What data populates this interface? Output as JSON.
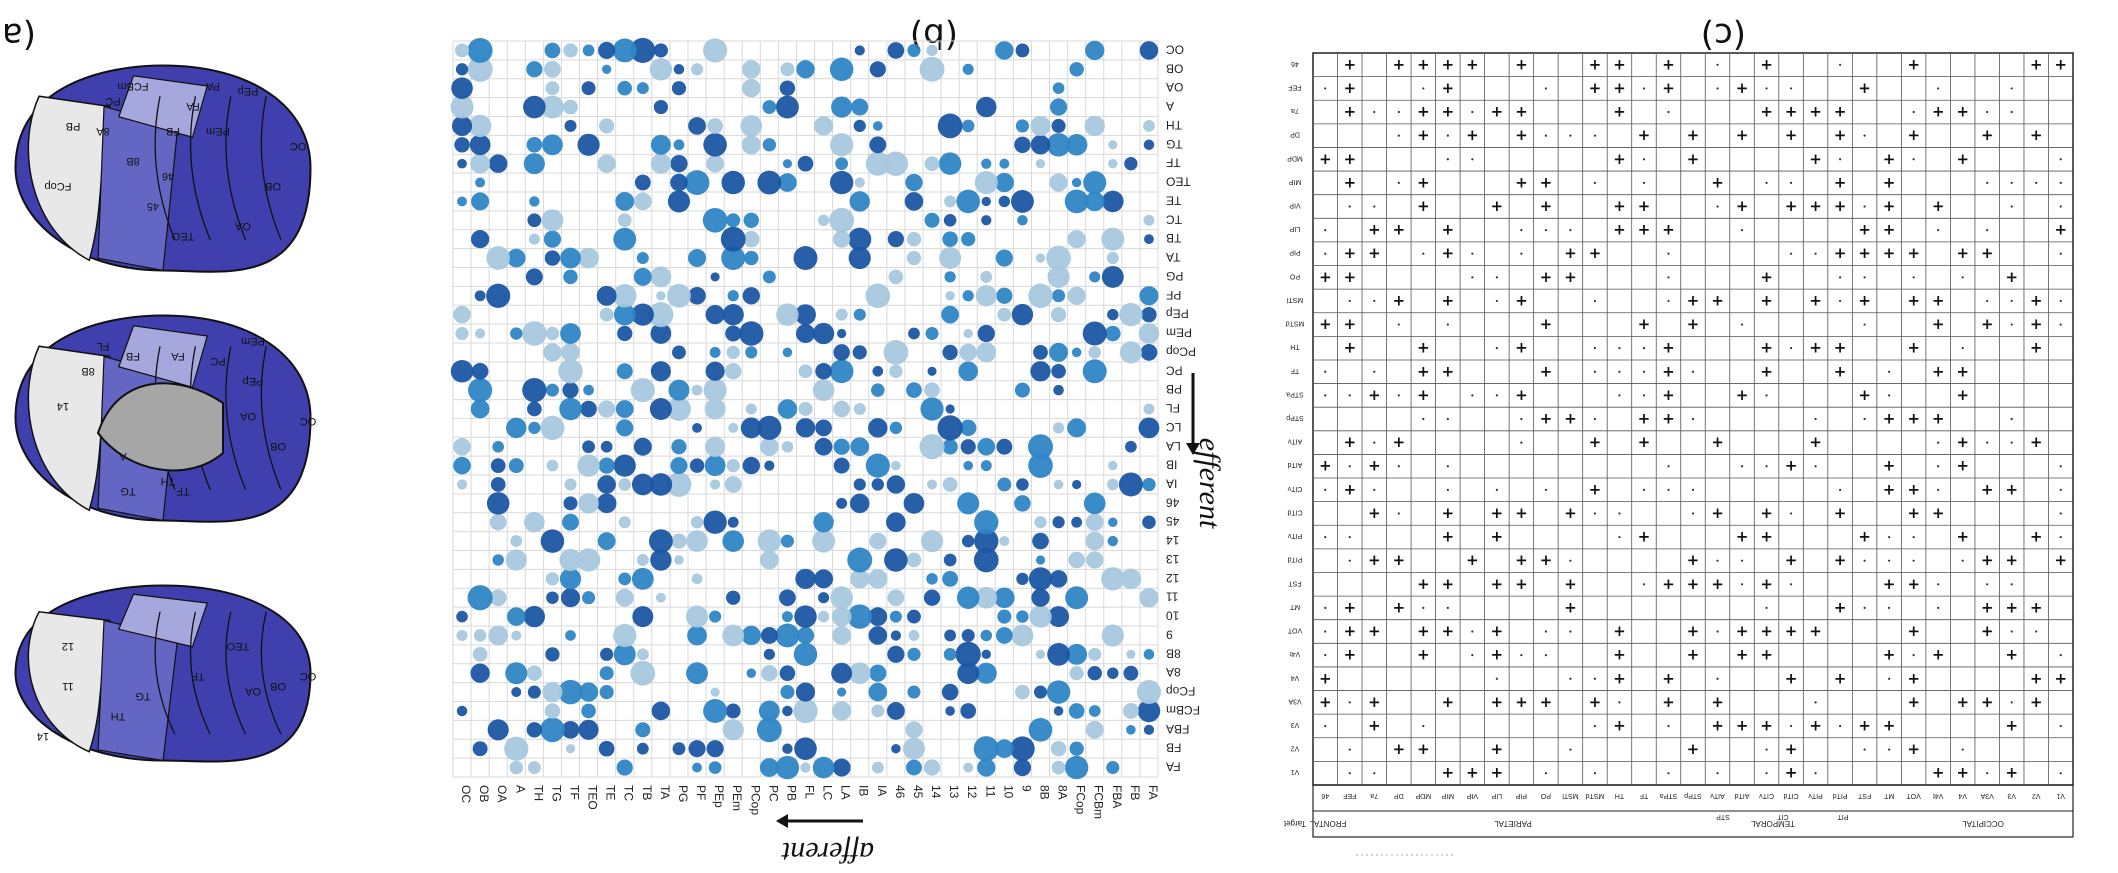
{
  "labels": {
    "a": "(a)",
    "b": "(b)",
    "c": "(c)"
  },
  "matrix_b": {
    "rows": [
      "FA",
      "FB",
      "FBA",
      "FCBm",
      "FCop",
      "8A",
      "8B",
      "9",
      "10",
      "11",
      "12",
      "13",
      "14",
      "45",
      "46",
      "IA",
      "IB",
      "LA",
      "LC",
      "FL",
      "PB",
      "PC",
      "PCop",
      "PEm",
      "PEp",
      "PF",
      "PG",
      "TA",
      "TB",
      "TC",
      "TE",
      "TEO",
      "TF",
      "TG",
      "TH",
      "A",
      "OA",
      "OB",
      "OC"
    ],
    "cols": [
      "FA",
      "FB",
      "FBA",
      "FCBm",
      "FCop",
      "8A",
      "8B",
      "9",
      "10",
      "11",
      "12",
      "13",
      "14",
      "45",
      "46",
      "IA",
      "IB",
      "LA",
      "LC",
      "FL",
      "PB",
      "PC",
      "PCop",
      "PEm",
      "PEp",
      "PF",
      "PG",
      "TA",
      "TB",
      "TC",
      "TE",
      "TEO",
      "TF",
      "TG",
      "TH",
      "A",
      "OA",
      "OB",
      "OC"
    ],
    "x_title": "afferent",
    "y_title": "efferent"
  },
  "matrix_a": {
    "col_groups": [
      "OCCIPITAL",
      "TEMPORAL",
      "PARIETAL",
      "FRONTAL"
    ],
    "sub_groups": [
      "PIT",
      "CIT",
      "STP"
    ],
    "row_header": "Target",
    "cols": [
      "V1",
      "V2",
      "V3",
      "V3A",
      "V4",
      "V4t",
      "VOT",
      "MT",
      "FST",
      "PITd",
      "PITv",
      "CITd",
      "CITv",
      "AITd",
      "AITv",
      "STPp",
      "STPa",
      "TF",
      "TH",
      "MSTd",
      "MSTl",
      "PO",
      "PIP",
      "LIP",
      "VIP",
      "MIP",
      "MDP",
      "DP",
      "7a",
      "FEF",
      "46"
    ],
    "entries_plus": 420,
    "entries_dot": 300
  },
  "colors": {
    "c1": "#1b56a3",
    "c2": "#2f86c6",
    "c3": "#a8c8de",
    "brain_dark": "#3f40ad",
    "brain_mid": "#6466c4",
    "brain_light": "#a5a7dd",
    "brain_pale": "#e8e8e8",
    "insula": "#a6a6a6"
  },
  "brains": {
    "top": [
      "PA",
      "FA",
      "FB",
      "FCBm",
      "PC",
      "PEm",
      "8A",
      "8B",
      "46",
      "FCop",
      "45",
      "TEO",
      "OA",
      "OB",
      "OC",
      "PEp",
      "PB"
    ],
    "mid": [
      "PEm",
      "PC",
      "FA",
      "FB",
      "8B",
      "PEp",
      "OA",
      "TF",
      "TH",
      "TG",
      "A",
      "OB",
      "OC",
      "FL",
      "14"
    ],
    "bot": [
      "TEO",
      "TF",
      "TG",
      "TH",
      "OA",
      "OB",
      "OC",
      "12",
      "11",
      "14"
    ]
  }
}
